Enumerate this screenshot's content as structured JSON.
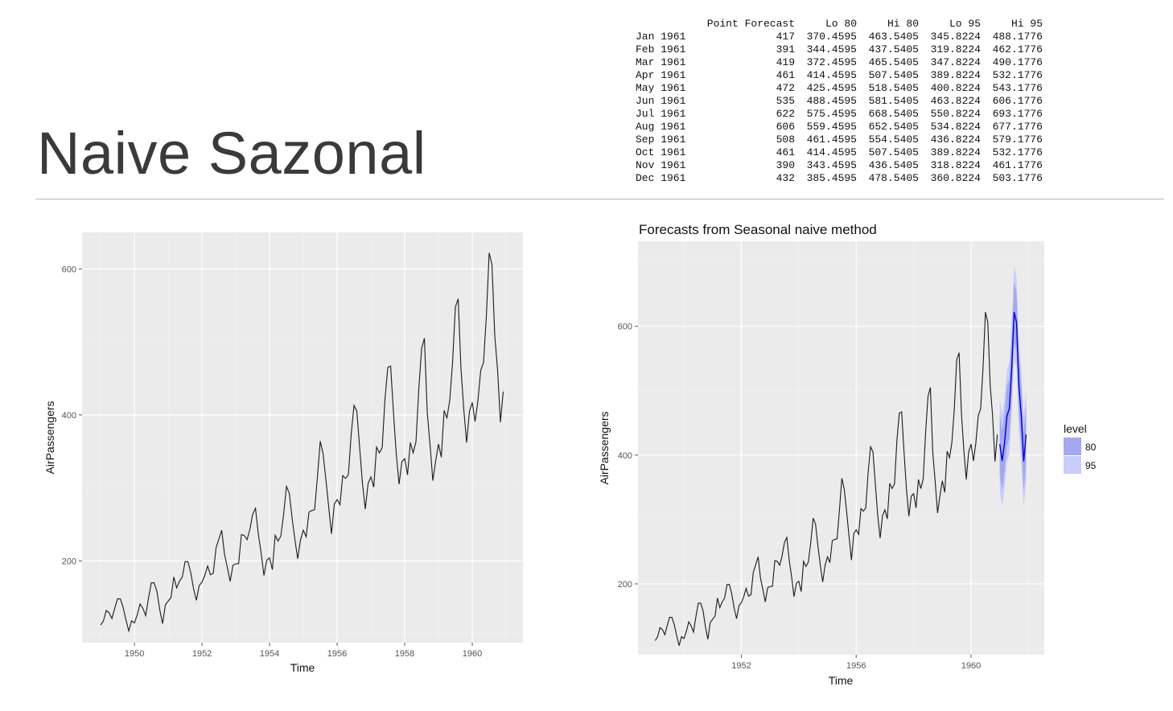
{
  "slide": {
    "title": "Naive Sazonal"
  },
  "forecast_table": {
    "columns": [
      "Point Forecast",
      "Lo 80",
      "Hi 80",
      "Lo 95",
      "Hi 95"
    ],
    "rows": [
      {
        "label": "Jan 1961",
        "values": [
          "417",
          "370.4595",
          "463.5405",
          "345.8224",
          "488.1776"
        ]
      },
      {
        "label": "Feb 1961",
        "values": [
          "391",
          "344.4595",
          "437.5405",
          "319.8224",
          "462.1776"
        ]
      },
      {
        "label": "Mar 1961",
        "values": [
          "419",
          "372.4595",
          "465.5405",
          "347.8224",
          "490.1776"
        ]
      },
      {
        "label": "Apr 1961",
        "values": [
          "461",
          "414.4595",
          "507.5405",
          "389.8224",
          "532.1776"
        ]
      },
      {
        "label": "May 1961",
        "values": [
          "472",
          "425.4595",
          "518.5405",
          "400.8224",
          "543.1776"
        ]
      },
      {
        "label": "Jun 1961",
        "values": [
          "535",
          "488.4595",
          "581.5405",
          "463.8224",
          "606.1776"
        ]
      },
      {
        "label": "Jul 1961",
        "values": [
          "622",
          "575.4595",
          "668.5405",
          "550.8224",
          "693.1776"
        ]
      },
      {
        "label": "Aug 1961",
        "values": [
          "606",
          "559.4595",
          "652.5405",
          "534.8224",
          "677.1776"
        ]
      },
      {
        "label": "Sep 1961",
        "values": [
          "508",
          "461.4595",
          "554.5405",
          "436.8224",
          "579.1776"
        ]
      },
      {
        "label": "Oct 1961",
        "values": [
          "461",
          "414.4595",
          "507.5405",
          "389.8224",
          "532.1776"
        ]
      },
      {
        "label": "Nov 1961",
        "values": [
          "390",
          "343.4595",
          "436.5405",
          "318.8224",
          "461.1776"
        ]
      },
      {
        "label": "Dec 1961",
        "values": [
          "432",
          "385.4595",
          "478.5405",
          "360.8224",
          "503.1776"
        ]
      }
    ]
  },
  "chart_data": [
    {
      "type": "line",
      "title": "",
      "xlabel": "Time",
      "ylabel": "AirPassengers",
      "x_start": 1949,
      "x_step": 0.0833333,
      "xlim": [
        1948.45,
        1961.5
      ],
      "ylim": [
        88,
        650
      ],
      "xticks": [
        1950,
        1952,
        1954,
        1956,
        1958,
        1960
      ],
      "yticks": [
        200,
        400,
        600
      ],
      "grid": true,
      "series": [
        {
          "values": [
            112,
            118,
            132,
            129,
            121,
            135,
            148,
            148,
            136,
            119,
            104,
            118,
            115,
            126,
            141,
            135,
            125,
            149,
            170,
            170,
            158,
            133,
            114,
            140,
            145,
            150,
            178,
            163,
            172,
            178,
            199,
            199,
            184,
            162,
            146,
            166,
            171,
            180,
            193,
            181,
            183,
            218,
            230,
            242,
            209,
            191,
            172,
            194,
            196,
            196,
            236,
            235,
            229,
            243,
            264,
            272,
            237,
            211,
            180,
            201,
            204,
            188,
            235,
            227,
            234,
            264,
            302,
            293,
            259,
            229,
            203,
            229,
            242,
            233,
            267,
            269,
            270,
            315,
            364,
            347,
            312,
            274,
            237,
            278,
            284,
            277,
            317,
            313,
            318,
            374,
            413,
            405,
            355,
            306,
            271,
            306,
            315,
            301,
            356,
            348,
            355,
            422,
            465,
            467,
            404,
            347,
            305,
            336,
            340,
            318,
            362,
            348,
            363,
            435,
            491,
            505,
            404,
            359,
            310,
            337,
            360,
            342,
            406,
            396,
            420,
            472,
            548,
            559,
            463,
            407,
            362,
            405,
            417,
            391,
            419,
            461,
            472,
            535,
            622,
            606,
            508,
            461,
            390,
            432
          ]
        }
      ]
    },
    {
      "type": "line",
      "title": "Forecasts from Seasonal naive method",
      "xlabel": "Time",
      "ylabel": "AirPassengers",
      "x_start": 1949,
      "x_step": 0.0833333,
      "forecast_x_start": 1961,
      "xlim": [
        1948.4,
        1962.55
      ],
      "ylim": [
        90,
        732
      ],
      "xticks": [
        1952,
        1956,
        1960
      ],
      "yticks": [
        200,
        400,
        600
      ],
      "grid": true,
      "legend": {
        "title": "level",
        "position": "right",
        "items": [
          {
            "label": "80",
            "color": "#a4a8ee"
          },
          {
            "label": "95",
            "color": "#cacdf9"
          }
        ]
      },
      "series": [
        {
          "name": "",
          "values": [
            112,
            118,
            132,
            129,
            121,
            135,
            148,
            148,
            136,
            119,
            104,
            118,
            115,
            126,
            141,
            135,
            125,
            149,
            170,
            170,
            158,
            133,
            114,
            140,
            145,
            150,
            178,
            163,
            172,
            178,
            199,
            199,
            184,
            162,
            146,
            166,
            171,
            180,
            193,
            181,
            183,
            218,
            230,
            242,
            209,
            191,
            172,
            194,
            196,
            196,
            236,
            235,
            229,
            243,
            264,
            272,
            237,
            211,
            180,
            201,
            204,
            188,
            235,
            227,
            234,
            264,
            302,
            293,
            259,
            229,
            203,
            229,
            242,
            233,
            267,
            269,
            270,
            315,
            364,
            347,
            312,
            274,
            237,
            278,
            284,
            277,
            317,
            313,
            318,
            374,
            413,
            405,
            355,
            306,
            271,
            306,
            315,
            301,
            356,
            348,
            355,
            422,
            465,
            467,
            404,
            347,
            305,
            336,
            340,
            318,
            362,
            348,
            363,
            435,
            491,
            505,
            404,
            359,
            310,
            337,
            360,
            342,
            406,
            396,
            420,
            472,
            548,
            559,
            463,
            407,
            362,
            405,
            417,
            391,
            419,
            461,
            472,
            535,
            622,
            606,
            508,
            461,
            390,
            432
          ]
        },
        {
          "name": "Point Forecast",
          "values": [
            417,
            391,
            419,
            461,
            472,
            535,
            622,
            606,
            508,
            461,
            390,
            432
          ]
        },
        {
          "name": "Lo 80",
          "values": [
            370.4595,
            344.4595,
            372.4595,
            414.4595,
            425.4595,
            488.4595,
            575.4595,
            559.4595,
            461.4595,
            414.4595,
            343.4595,
            385.4595
          ]
        },
        {
          "name": "Hi 80",
          "values": [
            463.5405,
            437.5405,
            465.5405,
            507.5405,
            518.5405,
            581.5405,
            668.5405,
            652.5405,
            554.5405,
            507.5405,
            436.5405,
            478.5405
          ]
        },
        {
          "name": "Lo 95",
          "values": [
            345.8224,
            319.8224,
            347.8224,
            389.8224,
            400.8224,
            463.8224,
            550.8224,
            534.8224,
            436.8224,
            389.8224,
            318.8224,
            360.8224
          ]
        },
        {
          "name": "Hi 95",
          "values": [
            488.1776,
            462.1776,
            490.1776,
            532.1776,
            543.1776,
            606.1776,
            693.1776,
            677.1776,
            579.1776,
            532.1776,
            461.1776,
            503.1776
          ]
        }
      ]
    }
  ],
  "colors": {
    "panel_bg": "#ebebeb",
    "grid_line": "#ffffff",
    "series_line": "#1a1a1a",
    "forecast_line": "#0000cc",
    "band_80": "#a4a8ee",
    "band_95": "#cacdf9"
  }
}
